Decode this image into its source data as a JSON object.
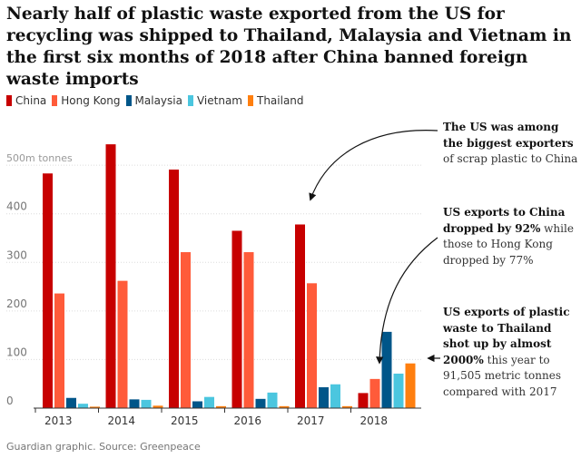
{
  "title": "Nearly half of plastic waste exported from the US for recycling was shipped to Thailand, Malaysia and Vietnam in the first six months of 2018 after China banned foreign waste imports",
  "colors": {
    "China": "#c70000",
    "Hong Kong": "#ff5b3a",
    "Malaysia": "#005689",
    "Vietnam": "#4bc6df",
    "Thailand": "#ff7f0f",
    "grid": "#dcdcdc",
    "axis": "#333333"
  },
  "chart_data": {
    "type": "bar",
    "categories": [
      "2013",
      "2014",
      "2015",
      "2016",
      "2017",
      "2018"
    ],
    "series": [
      {
        "name": "China",
        "values": [
          483,
          543,
          491,
          365,
          378,
          31
        ]
      },
      {
        "name": "Hong Kong",
        "values": [
          236,
          262,
          321,
          321,
          257,
          60
        ]
      },
      {
        "name": "Malaysia",
        "values": [
          21,
          18,
          14,
          19,
          43,
          157
        ]
      },
      {
        "name": "Vietnam",
        "values": [
          9,
          17,
          23,
          32,
          49,
          71
        ]
      },
      {
        "name": "Thailand",
        "values": [
          3,
          5,
          4,
          4,
          4,
          92
        ]
      }
    ],
    "y_unit_label": "500m tonnes",
    "yticks": [
      0,
      100,
      200,
      300,
      400,
      500
    ],
    "ylim": [
      0,
      560
    ],
    "grid": true,
    "legend_position": "top-left"
  },
  "annotations": [
    {
      "bold": "The US was among the biggest exporters",
      "text": " of scrap plastic to China"
    },
    {
      "bold": "US exports to China dropped by 92%",
      "text": " while those to Hong Kong dropped by 77%"
    },
    {
      "bold": "US exports of plastic waste to Thailand shot up by almost 2000%",
      "text": " this year to 91,505 metric tonnes compared with 2017"
    }
  ],
  "footer": "Guardian graphic. Source: Greenpeace"
}
